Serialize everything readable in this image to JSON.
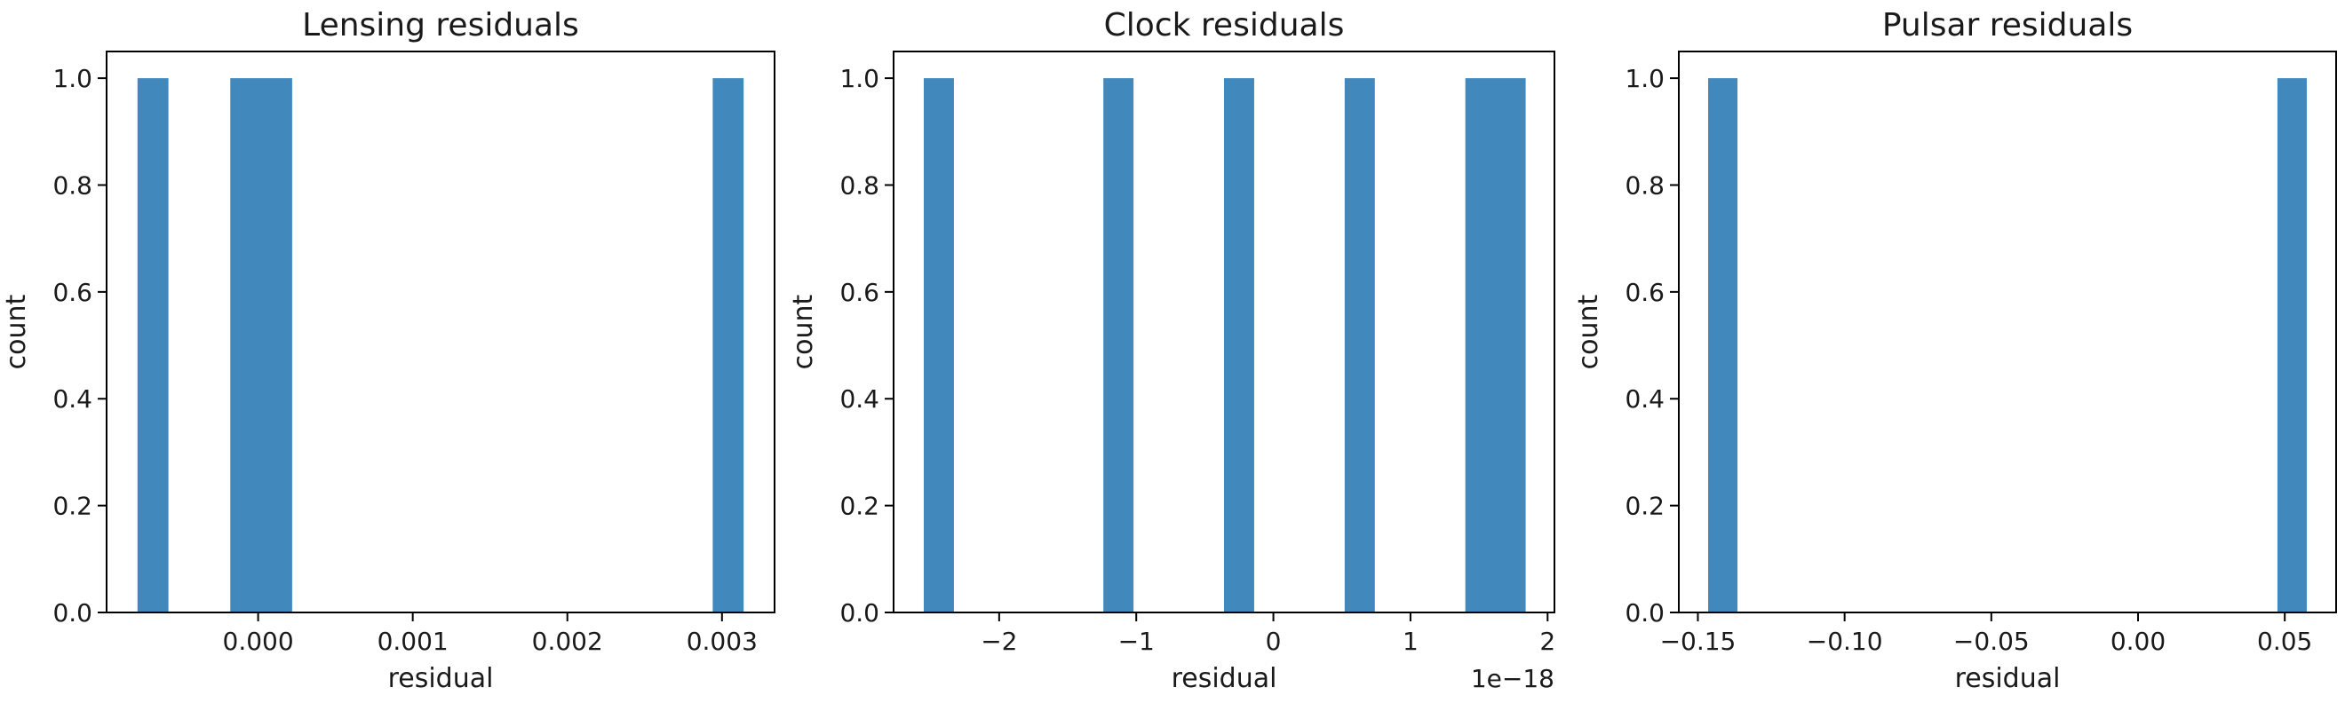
{
  "chart_data": [
    {
      "type": "bar",
      "title": "Lensing residuals",
      "xlabel": "residual",
      "ylabel": "count",
      "xlim": [
        -0.00098,
        0.00334
      ],
      "ylim": [
        0,
        1.05
      ],
      "x_ticks": [
        0.0,
        0.001,
        0.002,
        0.003
      ],
      "x_tick_labels": [
        "0.000",
        "0.001",
        "0.002",
        "0.003"
      ],
      "x_offset_label": "",
      "y_ticks": [
        0.0,
        0.2,
        0.4,
        0.6,
        0.8,
        1.0
      ],
      "y_tick_labels": [
        "0.0",
        "0.2",
        "0.4",
        "0.6",
        "0.8",
        "1.0"
      ],
      "bar_color": "#4189bd",
      "bars": [
        {
          "x0": -0.00078,
          "x1": -0.00058,
          "count": 1
        },
        {
          "x0": -0.00018,
          "x1": 0.00022,
          "count": 1
        },
        {
          "x0": 0.00294,
          "x1": 0.00314,
          "count": 1
        }
      ]
    },
    {
      "type": "bar",
      "title": "Clock residuals",
      "xlabel": "residual",
      "ylabel": "count",
      "xlim": [
        -2.77,
        2.05
      ],
      "ylim": [
        0,
        1.05
      ],
      "x_ticks": [
        -2,
        -1,
        0,
        1,
        2
      ],
      "x_tick_labels": [
        "−2",
        "−1",
        "0",
        "1",
        "2"
      ],
      "x_offset_label": "1e−18",
      "y_ticks": [
        0.0,
        0.2,
        0.4,
        0.6,
        0.8,
        1.0
      ],
      "y_tick_labels": [
        "0.0",
        "0.2",
        "0.4",
        "0.6",
        "0.8",
        "1.0"
      ],
      "bar_color": "#4189bd",
      "bars": [
        {
          "x0": -2.55,
          "x1": -2.33,
          "count": 1
        },
        {
          "x0": -1.24,
          "x1": -1.02,
          "count": 1
        },
        {
          "x0": -0.36,
          "x1": -0.14,
          "count": 1
        },
        {
          "x0": 0.52,
          "x1": 0.74,
          "count": 1
        },
        {
          "x0": 1.4,
          "x1": 1.84,
          "count": 1
        }
      ]
    },
    {
      "type": "bar",
      "title": "Pulsar residuals",
      "xlabel": "residual",
      "ylabel": "count",
      "xlim": [
        -0.1565,
        0.0675
      ],
      "ylim": [
        0,
        1.05
      ],
      "x_ticks": [
        -0.15,
        -0.1,
        -0.05,
        0.0,
        0.05
      ],
      "x_tick_labels": [
        "−0.15",
        "−0.10",
        "−0.05",
        "0.00",
        "0.05"
      ],
      "x_offset_label": "",
      "y_ticks": [
        0.0,
        0.2,
        0.4,
        0.6,
        0.8,
        1.0
      ],
      "y_tick_labels": [
        "0.0",
        "0.2",
        "0.4",
        "0.6",
        "0.8",
        "1.0"
      ],
      "bar_color": "#4189bd",
      "bars": [
        {
          "x0": -0.1465,
          "x1": -0.1365,
          "count": 1
        },
        {
          "x0": 0.0475,
          "x1": 0.0575,
          "count": 1
        }
      ]
    }
  ]
}
